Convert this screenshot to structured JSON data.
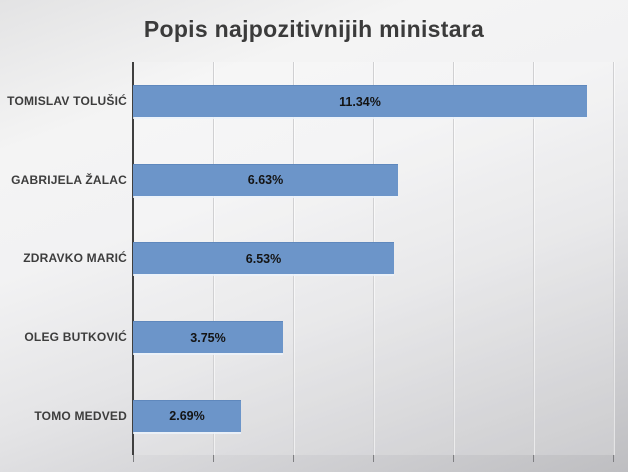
{
  "title": "Popis najpozitivnijih ministara",
  "chart_data": {
    "type": "bar",
    "orientation": "horizontal",
    "title": "Popis najpozitivnijih ministara",
    "categories": [
      "TOMISLAV TOLUŠIĆ",
      "GABRIJELA ŽALAC",
      "ZDRAVKO MARIĆ",
      "OLEG BUTKOVIĆ",
      "TOMO MEDVED"
    ],
    "values": [
      11.34,
      6.63,
      6.53,
      3.75,
      2.69
    ],
    "value_labels": [
      "11.34%",
      "6.63%",
      "6.53%",
      "3.75%",
      "2.69%"
    ],
    "xlabel": "",
    "ylabel": "",
    "xlim": [
      0,
      12
    ],
    "gridline_step": 2,
    "grid": true,
    "legend": false,
    "data_labels": "center-inside",
    "bar_color": "#6C95C9",
    "axis_color": "#3F3F3F",
    "gridline_color": "#D0D0D2",
    "title_color": "#3B3B3B"
  }
}
